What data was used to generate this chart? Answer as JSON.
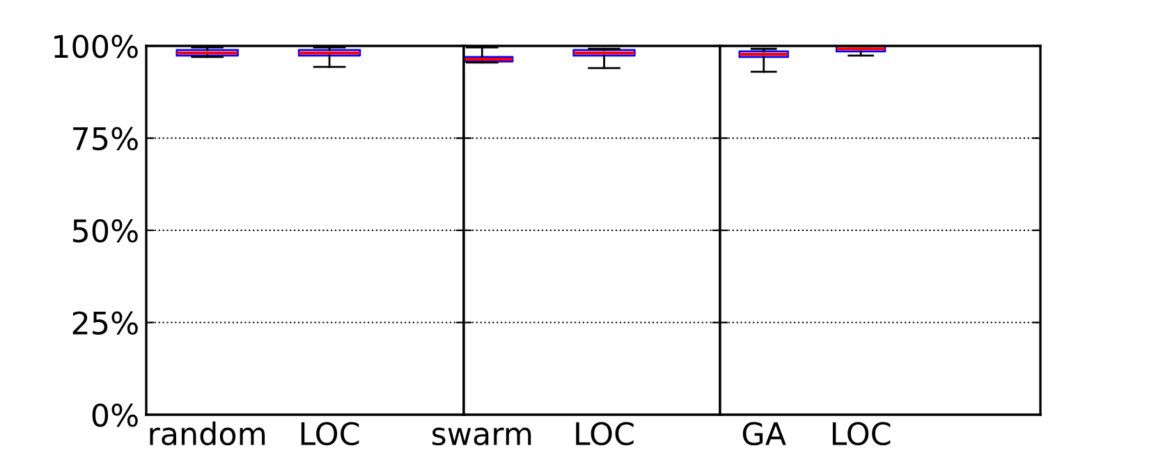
{
  "chart_data": [
    {
      "type": "box",
      "categories": [
        "random",
        "LOC"
      ],
      "series": [
        {
          "color": "#0000ff",
          "boxes": [
            {
              "low": 97.0,
              "q1": 97.4,
              "median": 98.1,
              "q3": 98.9,
              "high": 99.6
            },
            {
              "low": 94.3,
              "q1": 97.4,
              "median": 98.1,
              "q3": 98.9,
              "high": 99.6
            }
          ]
        }
      ],
      "ylim": [
        0,
        100
      ],
      "yticks": [
        {
          "value": 0,
          "label": "0%"
        },
        {
          "value": 25,
          "label": "25%"
        },
        {
          "value": 50,
          "label": "50%"
        },
        {
          "value": 75,
          "label": "75%"
        },
        {
          "value": 100,
          "label": "100%"
        }
      ],
      "grid": "y"
    },
    {
      "type": "box",
      "categories": [
        "swarm",
        "LOC"
      ],
      "series": [
        {
          "color": "#0000ff",
          "boxes": [
            {
              "low": 95.5,
              "q1": 95.8,
              "median": 96.4,
              "q3": 97.0,
              "high": 99.6
            },
            {
              "low": 94.0,
              "q1": 97.4,
              "median": 98.1,
              "q3": 98.9,
              "high": 99.2
            }
          ]
        }
      ],
      "ylim": [
        0,
        100
      ],
      "yticks": [
        {
          "value": 0,
          "label": null
        },
        {
          "value": 25,
          "label": null
        },
        {
          "value": 50,
          "label": null
        },
        {
          "value": 75,
          "label": null
        },
        {
          "value": 100,
          "label": null
        }
      ],
      "grid": "y",
      "tick_labels": "x"
    },
    {
      "type": "box",
      "categories": [
        "GA",
        "LOC"
      ],
      "series": [
        {
          "color": "#0000ff",
          "boxes": [
            {
              "low": 93.0,
              "q1": 97.0,
              "median": 97.7,
              "q3": 98.5,
              "high": 99.2
            },
            {
              "low": 97.4,
              "q1": 98.5,
              "median": 99.2,
              "q3": 100,
              "high": 100
            }
          ]
        }
      ],
      "ylim": [
        0,
        100
      ],
      "yticks": [
        {
          "value": 0,
          "label": null
        },
        {
          "value": 25,
          "label": null
        },
        {
          "value": 50,
          "label": null
        },
        {
          "value": 75,
          "label": null
        },
        {
          "value": 100,
          "label": null
        }
      ],
      "grid": "y",
      "tick_labels": "x"
    }
  ]
}
